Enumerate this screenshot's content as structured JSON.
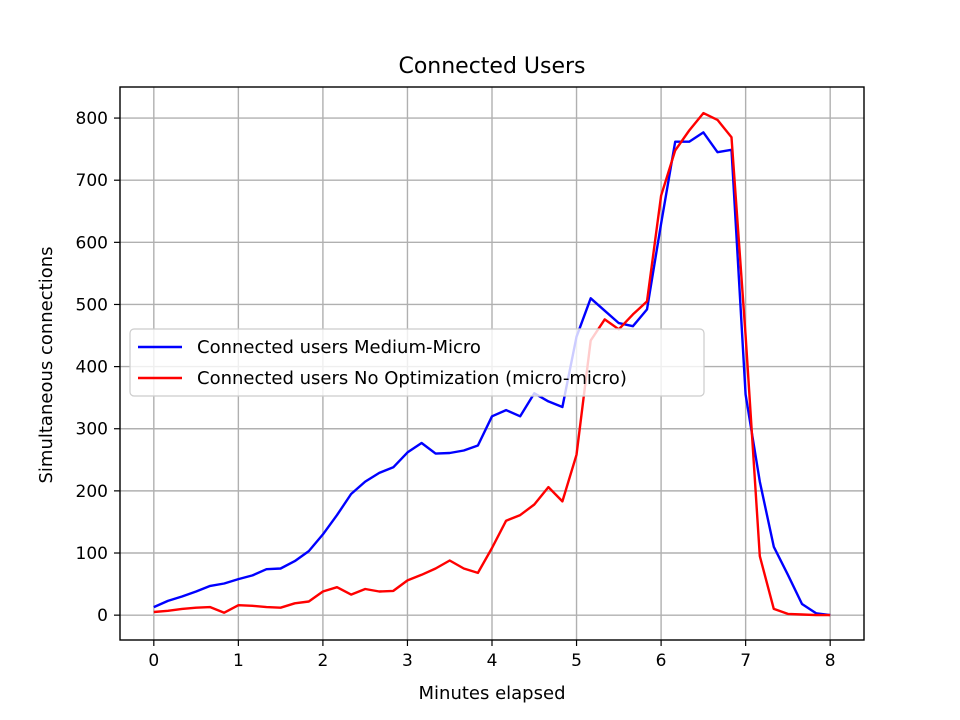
{
  "chart_data": {
    "type": "line",
    "title": "Connected Users",
    "xlabel": "Minutes elapsed",
    "ylabel": "Simultaneous connections",
    "xlim": [
      -0.4,
      8.4
    ],
    "ylim": [
      -40,
      850
    ],
    "xticks": [
      0,
      1,
      2,
      3,
      4,
      5,
      6,
      7,
      8
    ],
    "yticks": [
      0,
      100,
      200,
      300,
      400,
      500,
      600,
      700,
      800
    ],
    "grid": true,
    "legend_position": "center-left",
    "series": [
      {
        "name": "Connected users Medium-Micro",
        "color": "#0000ff",
        "x": [
          0,
          0.167,
          0.333,
          0.5,
          0.667,
          0.833,
          1.0,
          1.167,
          1.333,
          1.5,
          1.667,
          1.833,
          2.0,
          2.167,
          2.333,
          2.5,
          2.667,
          2.833,
          3.0,
          3.167,
          3.333,
          3.5,
          3.667,
          3.833,
          4.0,
          4.167,
          4.333,
          4.5,
          4.667,
          4.833,
          5.0,
          5.167,
          5.333,
          5.5,
          5.667,
          5.833,
          6.0,
          6.167,
          6.333,
          6.5,
          6.667,
          6.833,
          7.0,
          7.167,
          7.333,
          7.5,
          7.667,
          7.833,
          8.0
        ],
        "y": [
          13,
          23,
          30,
          38,
          47,
          51,
          58,
          64,
          74,
          75,
          87,
          103,
          130,
          161,
          195,
          215,
          229,
          238,
          262,
          277,
          260,
          261,
          265,
          273,
          320,
          330,
          320,
          357,
          344,
          335,
          448,
          510,
          490,
          470,
          465,
          492,
          630,
          762,
          762,
          777,
          745,
          749,
          355,
          215,
          110,
          65,
          18,
          3,
          0
        ]
      },
      {
        "name": "Connected users No Optimization (micro-micro)",
        "color": "#ff0000",
        "x": [
          0,
          0.167,
          0.333,
          0.5,
          0.667,
          0.833,
          1.0,
          1.167,
          1.333,
          1.5,
          1.667,
          1.833,
          2.0,
          2.167,
          2.333,
          2.5,
          2.667,
          2.833,
          3.0,
          3.167,
          3.333,
          3.5,
          3.667,
          3.833,
          4.0,
          4.167,
          4.333,
          4.5,
          4.667,
          4.833,
          5.0,
          5.167,
          5.333,
          5.5,
          5.667,
          5.833,
          6.0,
          6.167,
          6.333,
          6.5,
          6.667,
          6.833,
          7.0,
          7.167,
          7.333,
          7.5,
          7.667,
          7.833,
          8.0
        ],
        "y": [
          5,
          7,
          10,
          12,
          13,
          4,
          16,
          15,
          13,
          12,
          19,
          22,
          38,
          45,
          33,
          42,
          38,
          39,
          56,
          65,
          75,
          88,
          75,
          68,
          108,
          152,
          161,
          178,
          206,
          183,
          258,
          442,
          476,
          460,
          484,
          505,
          675,
          748,
          780,
          808,
          797,
          769,
          450,
          95,
          10,
          2,
          1,
          0,
          0
        ]
      }
    ]
  }
}
